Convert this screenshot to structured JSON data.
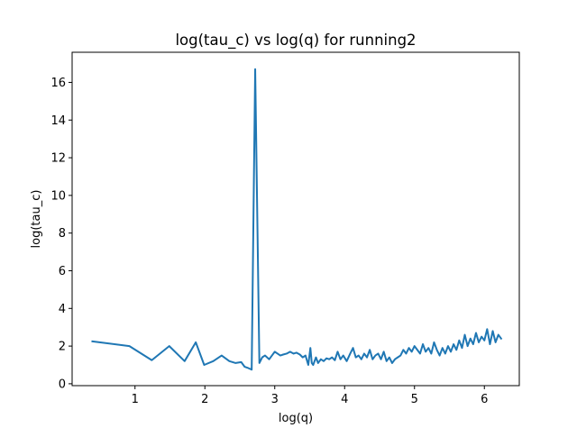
{
  "chart_data": {
    "type": "line",
    "title": "log(tau_c) vs log(q) for running2",
    "xlabel": "log(q)",
    "ylabel": "log(tau_c)",
    "xlim": [
      0.1,
      6.5
    ],
    "ylim": [
      -0.1,
      17.6
    ],
    "xticks": [
      1,
      2,
      3,
      4,
      5,
      6
    ],
    "yticks": [
      0,
      2,
      4,
      6,
      8,
      10,
      12,
      14,
      16
    ],
    "grid": false,
    "line_color": "#1f77b4",
    "series": [
      {
        "x": [
          0.39,
          0.92,
          1.24,
          1.49,
          1.71,
          1.87,
          1.99,
          2.12,
          2.24,
          2.35,
          2.44,
          2.52,
          2.57,
          2.61,
          2.67,
          2.72,
          2.78,
          2.82,
          2.86,
          2.92,
          2.96,
          3.0,
          3.04,
          3.08,
          3.12,
          3.17,
          3.22,
          3.27,
          3.31,
          3.36,
          3.4,
          3.44,
          3.48,
          3.51,
          3.53,
          3.55,
          3.59,
          3.62,
          3.66,
          3.7,
          3.74,
          3.78,
          3.82,
          3.86,
          3.9,
          3.94,
          3.98,
          4.03,
          4.08,
          4.12,
          4.16,
          4.2,
          4.24,
          4.28,
          4.32,
          4.36,
          4.4,
          4.44,
          4.48,
          4.52,
          4.56,
          4.6,
          4.64,
          4.68,
          4.72,
          4.76,
          4.8,
          4.84,
          4.88,
          4.92,
          4.96,
          5.0,
          5.04,
          5.08,
          5.12,
          5.16,
          5.2,
          5.24,
          5.28,
          5.32,
          5.36,
          5.4,
          5.44,
          5.48,
          5.52,
          5.56,
          5.6,
          5.64,
          5.68,
          5.72,
          5.76,
          5.8,
          5.84,
          5.88,
          5.92,
          5.96,
          6.0,
          6.04,
          6.08,
          6.12,
          6.16,
          6.2,
          6.24
        ],
        "y": [
          2.25,
          2.0,
          1.25,
          2.0,
          1.2,
          2.2,
          1.0,
          1.2,
          1.5,
          1.2,
          1.1,
          1.15,
          0.9,
          0.85,
          0.75,
          16.7,
          1.1,
          1.4,
          1.5,
          1.3,
          1.5,
          1.7,
          1.6,
          1.5,
          1.55,
          1.6,
          1.7,
          1.6,
          1.65,
          1.55,
          1.4,
          1.5,
          1.0,
          1.9,
          1.1,
          1.0,
          1.4,
          1.1,
          1.3,
          1.2,
          1.35,
          1.3,
          1.4,
          1.25,
          1.7,
          1.3,
          1.5,
          1.2,
          1.6,
          1.9,
          1.4,
          1.5,
          1.3,
          1.6,
          1.4,
          1.8,
          1.3,
          1.5,
          1.6,
          1.3,
          1.7,
          1.2,
          1.4,
          1.1,
          1.3,
          1.4,
          1.5,
          1.8,
          1.6,
          1.9,
          1.7,
          2.0,
          1.8,
          1.6,
          2.1,
          1.7,
          1.9,
          1.6,
          2.2,
          1.8,
          1.5,
          1.9,
          1.6,
          2.0,
          1.7,
          2.1,
          1.8,
          2.3,
          1.9,
          2.6,
          2.0,
          2.4,
          2.1,
          2.7,
          2.2,
          2.5,
          2.3,
          2.9,
          2.1,
          2.8,
          2.2,
          2.6,
          2.4
        ]
      }
    ]
  }
}
